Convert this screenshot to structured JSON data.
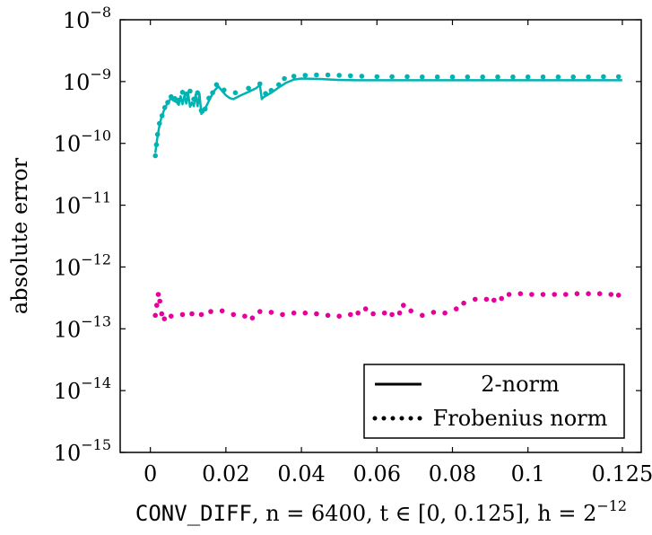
{
  "chart_data": {
    "type": "line",
    "title": "",
    "ylabel": "absolute error",
    "xlabel": {
      "code": "CONV_DIFF",
      "n_part": ", n = 6400, ",
      "t_part": "t ∈ [0, 0.125], ",
      "h_part": "h = 2",
      "h_exp": "−12"
    },
    "xlim": [
      -0.008,
      0.13
    ],
    "ylim_log10": [
      -15,
      -8
    ],
    "yscale": "log",
    "grid": false,
    "legend_position": "bottom-right",
    "x_ticks": [
      {
        "value": 0,
        "label": "0"
      },
      {
        "value": 0.02,
        "label": "0.02"
      },
      {
        "value": 0.04,
        "label": "0.04"
      },
      {
        "value": 0.06,
        "label": "0.06"
      },
      {
        "value": 0.08,
        "label": "0.08"
      },
      {
        "value": 0.1,
        "label": "0.1"
      },
      {
        "value": 0.125,
        "label": "0.125"
      }
    ],
    "y_ticks": [
      {
        "exp": -8,
        "label_base": "10",
        "label_exp": "−8"
      },
      {
        "exp": -9,
        "label_base": "10",
        "label_exp": "−9"
      },
      {
        "exp": -10,
        "label_base": "10",
        "label_exp": "−10"
      },
      {
        "exp": -11,
        "label_base": "10",
        "label_exp": "−11"
      },
      {
        "exp": -12,
        "label_base": "10",
        "label_exp": "−12"
      },
      {
        "exp": -13,
        "label_base": "10",
        "label_exp": "−13"
      },
      {
        "exp": -14,
        "label_base": "10",
        "label_exp": "−14"
      },
      {
        "exp": -15,
        "label_base": "10",
        "label_exp": "−15"
      }
    ],
    "legend": [
      {
        "label": "2-norm",
        "style": "solid"
      },
      {
        "label": "Frobenius norm",
        "style": "dotted"
      }
    ],
    "series": [
      {
        "color": "#00b3b3",
        "style": "solid",
        "points": [
          [
            0.0013,
            7e-11
          ],
          [
            0.0018,
            1.2e-10
          ],
          [
            0.0023,
            1.8e-10
          ],
          [
            0.0029,
            2.6e-10
          ],
          [
            0.0035,
            3.3e-10
          ],
          [
            0.0042,
            4.1e-10
          ],
          [
            0.005,
            4.9e-10
          ],
          [
            0.0055,
            5.4e-10
          ],
          [
            0.006,
            5e-10
          ],
          [
            0.007,
            4.6e-10
          ],
          [
            0.0075,
            4.2e-10
          ],
          [
            0.008,
            5.8e-10
          ],
          [
            0.0085,
            4.3e-10
          ],
          [
            0.009,
            5.9e-10
          ],
          [
            0.0095,
            4.4e-10
          ],
          [
            0.01,
            6.4e-10
          ],
          [
            0.0105,
            3.9e-10
          ],
          [
            0.011,
            4.6e-10
          ],
          [
            0.0115,
            4e-10
          ],
          [
            0.012,
            6.2e-10
          ],
          [
            0.0125,
            4e-10
          ],
          [
            0.013,
            6.4e-10
          ],
          [
            0.0135,
            3e-10
          ],
          [
            0.014,
            3.2e-10
          ],
          [
            0.015,
            4.2e-10
          ],
          [
            0.016,
            5.6e-10
          ],
          [
            0.017,
            7.2e-10
          ],
          [
            0.018,
            8.4e-10
          ],
          [
            0.019,
            7e-10
          ],
          [
            0.02,
            6e-10
          ],
          [
            0.021,
            5.4e-10
          ],
          [
            0.022,
            5.2e-10
          ],
          [
            0.024,
            6e-10
          ],
          [
            0.026,
            6.8e-10
          ],
          [
            0.028,
            7.8e-10
          ],
          [
            0.029,
            8.8e-10
          ],
          [
            0.0295,
            5.2e-10
          ],
          [
            0.03,
            5.6e-10
          ],
          [
            0.032,
            6.6e-10
          ],
          [
            0.034,
            8e-10
          ],
          [
            0.036,
            9.6e-10
          ],
          [
            0.038,
            1.08e-09
          ],
          [
            0.04,
            1.12e-09
          ],
          [
            0.045,
            1.1e-09
          ],
          [
            0.05,
            1.06e-09
          ],
          [
            0.055,
            1.05e-09
          ],
          [
            0.06,
            1.05e-09
          ],
          [
            0.07,
            1.05e-09
          ],
          [
            0.08,
            1.05e-09
          ],
          [
            0.09,
            1.05e-09
          ],
          [
            0.1,
            1.05e-09
          ],
          [
            0.11,
            1.05e-09
          ],
          [
            0.125,
            1.05e-09
          ]
        ]
      },
      {
        "color": "#00b3b3",
        "style": "dotted",
        "points": [
          [
            0.0013,
            6.3e-11
          ],
          [
            0.0016,
            9.5e-11
          ],
          [
            0.0019,
            1.4e-10
          ],
          [
            0.0024,
            2.1e-10
          ],
          [
            0.0031,
            2.8e-10
          ],
          [
            0.0038,
            3.8e-10
          ],
          [
            0.0046,
            4.6e-10
          ],
          [
            0.0055,
            5.7e-10
          ],
          [
            0.0065,
            5.3e-10
          ],
          [
            0.0075,
            5e-10
          ],
          [
            0.0085,
            6.7e-10
          ],
          [
            0.0095,
            6.3e-10
          ],
          [
            0.0105,
            7e-10
          ],
          [
            0.0115,
            5.2e-10
          ],
          [
            0.0125,
            6.6e-10
          ],
          [
            0.0135,
            3.4e-10
          ],
          [
            0.0145,
            3.6e-10
          ],
          [
            0.0155,
            5.4e-10
          ],
          [
            0.0165,
            6.6e-10
          ],
          [
            0.0175,
            8.9e-10
          ],
          [
            0.0195,
            7.3e-10
          ],
          [
            0.0225,
            6.6e-10
          ],
          [
            0.026,
            7.8e-10
          ],
          [
            0.029,
            9.2e-10
          ],
          [
            0.0305,
            6.4e-10
          ],
          [
            0.032,
            7.2e-10
          ],
          [
            0.034,
            8.9e-10
          ],
          [
            0.0355,
            1.12e-09
          ],
          [
            0.038,
            1.22e-09
          ],
          [
            0.041,
            1.26e-09
          ],
          [
            0.044,
            1.28e-09
          ],
          [
            0.047,
            1.28e-09
          ],
          [
            0.05,
            1.26e-09
          ],
          [
            0.053,
            1.24e-09
          ],
          [
            0.056,
            1.22e-09
          ],
          [
            0.06,
            1.2e-09
          ],
          [
            0.064,
            1.2e-09
          ],
          [
            0.068,
            1.2e-09
          ],
          [
            0.072,
            1.19e-09
          ],
          [
            0.076,
            1.19e-09
          ],
          [
            0.08,
            1.19e-09
          ],
          [
            0.084,
            1.19e-09
          ],
          [
            0.088,
            1.19e-09
          ],
          [
            0.092,
            1.19e-09
          ],
          [
            0.096,
            1.19e-09
          ],
          [
            0.1,
            1.19e-09
          ],
          [
            0.104,
            1.19e-09
          ],
          [
            0.108,
            1.19e-09
          ],
          [
            0.112,
            1.19e-09
          ],
          [
            0.116,
            1.19e-09
          ],
          [
            0.12,
            1.2e-09
          ],
          [
            0.124,
            1.2e-09
          ]
        ]
      },
      {
        "color": "#e6009a",
        "style": "dotted",
        "points": [
          [
            0.0013,
            1.65e-13
          ],
          [
            0.0017,
            2.4e-13
          ],
          [
            0.0021,
            3.6e-13
          ],
          [
            0.0025,
            2.8e-13
          ],
          [
            0.003,
            1.75e-13
          ],
          [
            0.0037,
            1.45e-13
          ],
          [
            0.0055,
            1.6e-13
          ],
          [
            0.0085,
            1.7e-13
          ],
          [
            0.011,
            1.75e-13
          ],
          [
            0.0135,
            1.7e-13
          ],
          [
            0.016,
            1.9e-13
          ],
          [
            0.019,
            1.95e-13
          ],
          [
            0.022,
            1.7e-13
          ],
          [
            0.025,
            1.6e-13
          ],
          [
            0.027,
            1.5e-13
          ],
          [
            0.029,
            1.9e-13
          ],
          [
            0.032,
            1.85e-13
          ],
          [
            0.035,
            1.7e-13
          ],
          [
            0.038,
            1.8e-13
          ],
          [
            0.041,
            1.8e-13
          ],
          [
            0.044,
            1.75e-13
          ],
          [
            0.047,
            1.65e-13
          ],
          [
            0.05,
            1.6e-13
          ],
          [
            0.053,
            1.7e-13
          ],
          [
            0.055,
            1.8e-13
          ],
          [
            0.057,
            2.1e-13
          ],
          [
            0.059,
            1.75e-13
          ],
          [
            0.062,
            1.8e-13
          ],
          [
            0.064,
            1.7e-13
          ],
          [
            0.066,
            1.8e-13
          ],
          [
            0.067,
            2.4e-13
          ],
          [
            0.069,
            1.95e-13
          ],
          [
            0.072,
            1.65e-13
          ],
          [
            0.075,
            1.85e-13
          ],
          [
            0.078,
            1.8e-13
          ],
          [
            0.081,
            2.1e-13
          ],
          [
            0.083,
            2.6e-13
          ],
          [
            0.086,
            3e-13
          ],
          [
            0.089,
            3e-13
          ],
          [
            0.091,
            2.9e-13
          ],
          [
            0.093,
            3.1e-13
          ],
          [
            0.095,
            3.6e-13
          ],
          [
            0.098,
            3.7e-13
          ],
          [
            0.101,
            3.6e-13
          ],
          [
            0.104,
            3.6e-13
          ],
          [
            0.107,
            3.6e-13
          ],
          [
            0.11,
            3.6e-13
          ],
          [
            0.113,
            3.7e-13
          ],
          [
            0.116,
            3.7e-13
          ],
          [
            0.119,
            3.7e-13
          ],
          [
            0.122,
            3.6e-13
          ],
          [
            0.124,
            3.5e-13
          ]
        ]
      }
    ]
  }
}
